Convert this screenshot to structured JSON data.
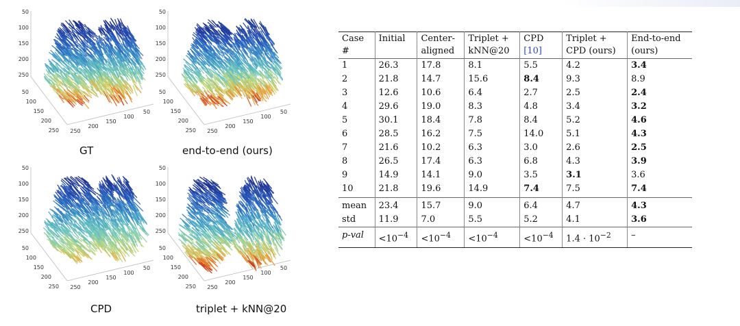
{
  "figure": {
    "captions": {
      "gt": "GT",
      "e2e": "end-to-end (ours)",
      "cpd": "CPD",
      "triplet": "triplet + kNN@20"
    },
    "axis_ticks": {
      "z": [
        "50",
        "100",
        "150",
        "200",
        "250"
      ],
      "left": [
        "50",
        "100",
        "150",
        "200",
        "250"
      ],
      "right": [
        "250",
        "200",
        "150",
        "100",
        "50"
      ]
    }
  },
  "table": {
    "headers": [
      [
        "Case",
        "#"
      ],
      [
        "Initial",
        ""
      ],
      [
        "Center-",
        "aligned"
      ],
      [
        "Triplet +",
        "kNN@20"
      ],
      [
        "CPD",
        "[10]"
      ],
      [
        "Triplet +",
        "CPD (ours)"
      ],
      [
        "End-to-end",
        "(ours)"
      ]
    ],
    "rows": [
      [
        "1",
        "26.3",
        "17.8",
        "8.1",
        "5.5",
        "4.2",
        "3.4"
      ],
      [
        "2",
        "21.8",
        "14.7",
        "15.6",
        "8.4",
        "9.3",
        "8.9"
      ],
      [
        "3",
        "12.6",
        "10.6",
        "6.4",
        "2.7",
        "2.5",
        "2.4"
      ],
      [
        "4",
        "29.6",
        "19.0",
        "8.3",
        "4.8",
        "3.4",
        "3.2"
      ],
      [
        "5",
        "30.1",
        "18.4",
        "7.8",
        "8.4",
        "5.2",
        "4.6"
      ],
      [
        "6",
        "28.5",
        "16.2",
        "7.5",
        "14.0",
        "5.1",
        "4.3"
      ],
      [
        "7",
        "21.6",
        "10.2",
        "6.3",
        "3.0",
        "2.6",
        "2.5"
      ],
      [
        "8",
        "26.5",
        "17.4",
        "6.3",
        "6.8",
        "4.3",
        "3.9"
      ],
      [
        "9",
        "14.9",
        "14.1",
        "9.0",
        "3.5",
        "3.1",
        "3.6"
      ],
      [
        "10",
        "21.8",
        "19.6",
        "14.9",
        "7.4",
        "7.5",
        "7.4"
      ]
    ],
    "stats": [
      [
        "mean",
        "23.4",
        "15.7",
        "9.0",
        "6.4",
        "4.7",
        "4.3"
      ],
      [
        "std",
        "11.9",
        "7.0",
        "5.5",
        "5.2",
        "4.1",
        "3.6"
      ]
    ],
    "pval": {
      "label": "p-val",
      "values": [
        "<10",
        "<10",
        "<10",
        "<10",
        "1.4 · 10",
        "–"
      ],
      "exponents": [
        "−4",
        "−4",
        "−4",
        "−4",
        "−2",
        ""
      ]
    },
    "bold": [
      [
        0,
        6
      ],
      [
        1,
        4
      ],
      [
        2,
        6
      ],
      [
        3,
        6
      ],
      [
        4,
        6
      ],
      [
        5,
        6
      ],
      [
        6,
        6
      ],
      [
        7,
        6
      ],
      [
        8,
        5
      ],
      [
        9,
        4
      ],
      [
        9,
        6
      ]
    ],
    "bold_stats": [
      [
        0,
        6
      ],
      [
        1,
        6
      ]
    ]
  }
}
